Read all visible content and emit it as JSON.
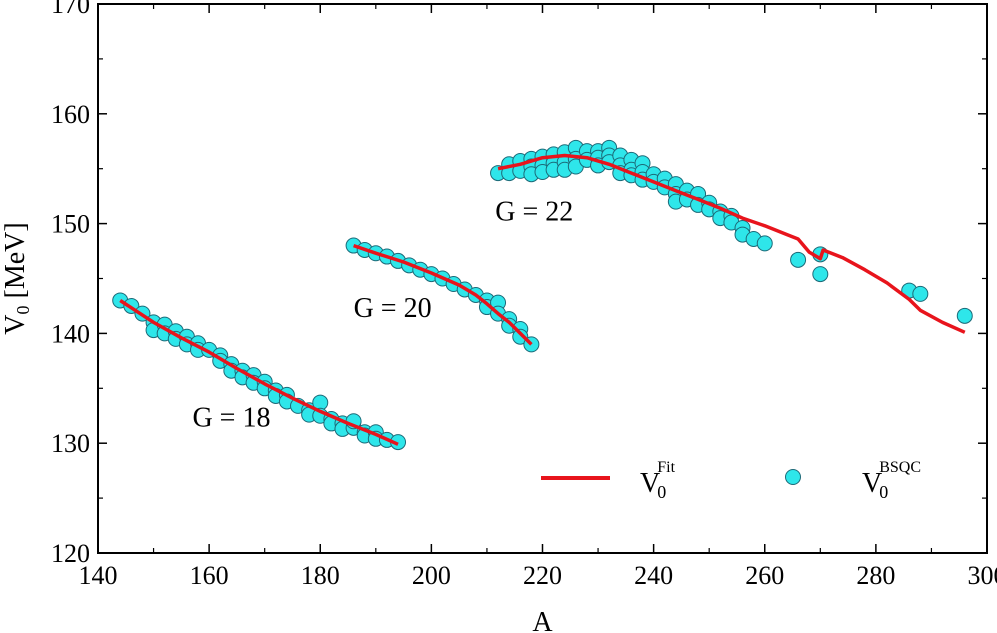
{
  "chart_data": {
    "type": "scatter",
    "title": "",
    "xlabel": "A",
    "ylabel": "V",
    "ylabel_sub": "0",
    "ylabel_unit": " [MeV]",
    "xlim": [
      140,
      300
    ],
    "ylim": [
      120,
      170
    ],
    "xticks": [
      140,
      160,
      180,
      200,
      220,
      240,
      260,
      280,
      300
    ],
    "yticks": [
      120,
      130,
      140,
      150,
      160,
      170
    ],
    "grid": false,
    "legend_position": "bottom-right",
    "colors": {
      "fit": "#e8141c",
      "bsqc": "#2ee6ea",
      "marker_edge": "#1c6a78"
    },
    "annotations": [
      {
        "text": "G = 18",
        "x": 157,
        "y": 131.5
      },
      {
        "text": "G = 20",
        "x": 186,
        "y": 141.5
      },
      {
        "text": "G = 22",
        "x": 211.5,
        "y": 150.3
      }
    ],
    "series": [
      {
        "name": "V",
        "name_sup": "Fit",
        "name_sub": "0",
        "kind": "line",
        "segments": [
          [
            [
              144,
              143
            ],
            [
              150,
              141
            ],
            [
              155,
              139.6
            ],
            [
              160,
              138.3
            ],
            [
              165,
              136.8
            ],
            [
              170,
              135.4
            ],
            [
              175,
              134.1
            ],
            [
              180,
              132.9
            ],
            [
              185,
              131.8
            ],
            [
              190,
              130.8
            ],
            [
              194,
              129.9
            ]
          ],
          [
            [
              186,
              148
            ],
            [
              190,
              147.3
            ],
            [
              195,
              146.5
            ],
            [
              200,
              145.5
            ],
            [
              205,
              144.4
            ],
            [
              208,
              143.5
            ],
            [
              210,
              142.7
            ],
            [
              212,
              141.8
            ],
            [
              214,
              141
            ],
            [
              216,
              140
            ],
            [
              218,
              139
            ]
          ],
          [
            [
              212,
              155
            ],
            [
              216,
              155.4
            ],
            [
              220,
              156
            ],
            [
              224,
              156.2
            ],
            [
              228,
              156
            ],
            [
              232,
              155.4
            ],
            [
              236,
              154.6
            ],
            [
              240,
              153.8
            ],
            [
              244,
              153
            ],
            [
              248,
              152.2
            ],
            [
              252,
              151.4
            ],
            [
              256,
              150.5
            ],
            [
              260,
              149.8
            ],
            [
              264,
              149
            ],
            [
              266,
              148.6
            ],
            [
              268,
              147.4
            ],
            [
              270,
              146.8
            ],
            [
              270.5,
              147.6
            ],
            [
              274,
              146.9
            ],
            [
              278,
              145.8
            ],
            [
              282,
              144.6
            ],
            [
              286,
              143.1
            ],
            [
              288,
              142.1
            ],
            [
              292,
              141
            ],
            [
              296,
              140.1
            ]
          ]
        ]
      },
      {
        "name": "V",
        "name_sup": "BSQC",
        "name_sub": "0",
        "kind": "scatter",
        "points": [
          [
            144,
            143
          ],
          [
            146,
            142.5
          ],
          [
            148,
            141.8
          ],
          [
            150,
            141
          ],
          [
            150,
            140.3
          ],
          [
            152,
            140.8
          ],
          [
            152,
            140
          ],
          [
            154,
            140.2
          ],
          [
            154,
            139.5
          ],
          [
            156,
            139.7
          ],
          [
            156,
            139
          ],
          [
            158,
            139.1
          ],
          [
            158,
            138.5
          ],
          [
            160,
            138.5
          ],
          [
            162,
            138
          ],
          [
            162,
            137.5
          ],
          [
            164,
            137.2
          ],
          [
            164,
            136.6
          ],
          [
            166,
            136.6
          ],
          [
            166,
            136
          ],
          [
            168,
            136.2
          ],
          [
            168,
            135.5
          ],
          [
            170,
            135.6
          ],
          [
            170,
            135
          ],
          [
            172,
            134.8
          ],
          [
            172,
            134.3
          ],
          [
            174,
            134.4
          ],
          [
            174,
            133.8
          ],
          [
            176,
            133.4
          ],
          [
            178,
            133
          ],
          [
            178,
            132.6
          ],
          [
            180,
            133.7
          ],
          [
            180,
            132.5
          ],
          [
            182,
            132.2
          ],
          [
            182,
            131.8
          ],
          [
            184,
            131.8
          ],
          [
            184,
            131.3
          ],
          [
            186,
            131.4
          ],
          [
            186,
            132
          ],
          [
            188,
            131
          ],
          [
            188,
            130.7
          ],
          [
            190,
            131
          ],
          [
            190,
            130.4
          ],
          [
            192,
            130.3
          ],
          [
            194,
            130.1
          ],
          [
            186,
            148
          ],
          [
            188,
            147.6
          ],
          [
            190,
            147.3
          ],
          [
            192,
            147
          ],
          [
            194,
            146.6
          ],
          [
            196,
            146.2
          ],
          [
            198,
            145.8
          ],
          [
            200,
            145.4
          ],
          [
            202,
            145
          ],
          [
            204,
            144.5
          ],
          [
            206,
            144
          ],
          [
            208,
            143.5
          ],
          [
            210,
            143
          ],
          [
            210,
            142.4
          ],
          [
            212,
            142.8
          ],
          [
            212,
            141.8
          ],
          [
            214,
            141.3
          ],
          [
            214,
            140.7
          ],
          [
            216,
            140.4
          ],
          [
            216,
            139.7
          ],
          [
            218,
            139
          ],
          [
            212,
            154.6
          ],
          [
            214,
            155.4
          ],
          [
            214,
            154.6
          ],
          [
            216,
            155.7
          ],
          [
            216,
            154.8
          ],
          [
            218,
            155.9
          ],
          [
            218,
            155.2
          ],
          [
            218,
            154.5
          ],
          [
            220,
            156.1
          ],
          [
            220,
            155.3
          ],
          [
            220,
            154.7
          ],
          [
            222,
            156.3
          ],
          [
            222,
            155.5
          ],
          [
            222,
            154.9
          ],
          [
            224,
            156.5
          ],
          [
            224,
            155.6
          ],
          [
            224,
            154.9
          ],
          [
            226,
            156.9
          ],
          [
            226,
            155.9
          ],
          [
            226,
            155.2
          ],
          [
            228,
            156.6
          ],
          [
            228,
            155.8
          ],
          [
            230,
            156.6
          ],
          [
            230,
            156
          ],
          [
            230,
            155.3
          ],
          [
            232,
            156.9
          ],
          [
            232,
            156.2
          ],
          [
            232,
            155.6
          ],
          [
            234,
            156.2
          ],
          [
            234,
            155.3
          ],
          [
            234,
            154.6
          ],
          [
            236,
            155.8
          ],
          [
            236,
            154.9
          ],
          [
            236,
            154.4
          ],
          [
            238,
            155.5
          ],
          [
            238,
            154.7
          ],
          [
            238,
            154
          ],
          [
            240,
            154.5
          ],
          [
            240,
            153.8
          ],
          [
            242,
            154.1
          ],
          [
            242,
            153.3
          ],
          [
            244,
            153.6
          ],
          [
            244,
            152.7
          ],
          [
            244,
            152
          ],
          [
            246,
            153
          ],
          [
            246,
            152.2
          ],
          [
            248,
            152.7
          ],
          [
            248,
            151.7
          ],
          [
            250,
            151.9
          ],
          [
            250,
            151.3
          ],
          [
            252,
            151.1
          ],
          [
            252,
            150.5
          ],
          [
            254,
            150.7
          ],
          [
            254,
            150.1
          ],
          [
            256,
            149.6
          ],
          [
            256,
            149
          ],
          [
            258,
            148.6
          ],
          [
            260,
            148.2
          ],
          [
            266,
            146.7
          ],
          [
            270,
            147.2
          ],
          [
            270,
            145.4
          ],
          [
            286,
            143.9
          ],
          [
            288,
            143.6
          ],
          [
            296,
            141.6
          ]
        ]
      }
    ]
  }
}
